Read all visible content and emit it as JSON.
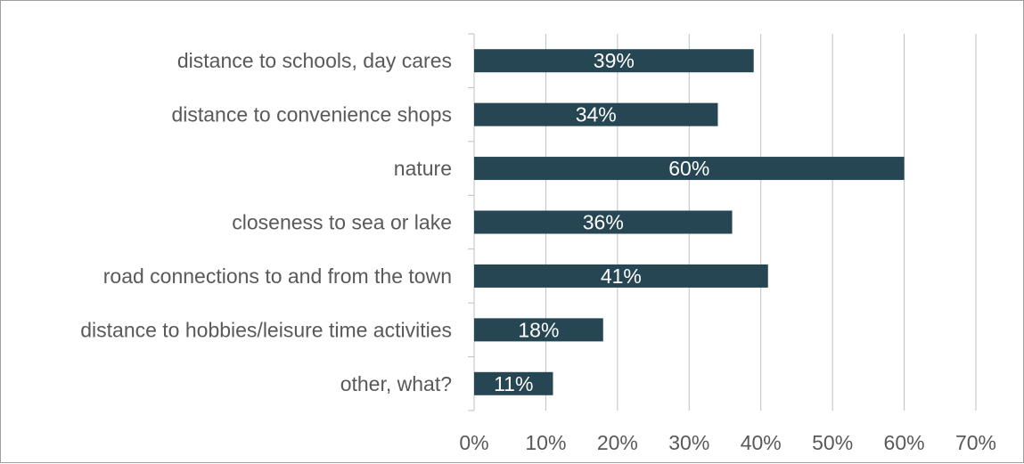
{
  "chart_data": {
    "type": "bar",
    "orientation": "horizontal",
    "categories": [
      "distance to schools, day cares",
      "distance to convenience shops",
      "nature",
      "closeness to sea or lake",
      "road connections to and from the town",
      "distance to hobbies/leisure time activities",
      "other, what?"
    ],
    "values": [
      39,
      34,
      60,
      36,
      41,
      18,
      11
    ],
    "data_labels": [
      "39%",
      "34%",
      "60%",
      "36%",
      "41%",
      "18%",
      "11%"
    ],
    "xlim": [
      0,
      70
    ],
    "x_ticks": [
      0,
      10,
      20,
      30,
      40,
      50,
      60,
      70
    ],
    "x_tick_labels": [
      "0%",
      "10%",
      "20%",
      "30%",
      "40%",
      "50%",
      "60%",
      "70%"
    ],
    "title": "",
    "xlabel": "",
    "ylabel": "",
    "grid": "vertical",
    "legend": "none",
    "bar_color": "#264653"
  }
}
